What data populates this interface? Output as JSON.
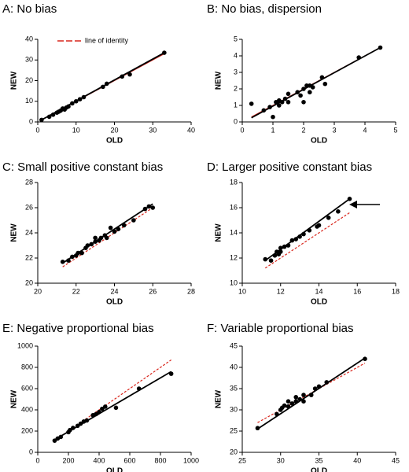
{
  "chart_data": [
    {
      "type": "scatter",
      "title": "A: No bias",
      "x_label": "OLD",
      "y_label": "NEW",
      "xlim": [
        0,
        40
      ],
      "ylim": [
        0,
        40
      ],
      "xticks": [
        0,
        10,
        20,
        30,
        40
      ],
      "yticks": [
        0,
        10,
        20,
        30,
        40
      ],
      "x": [
        1,
        3,
        4,
        5,
        5.5,
        6,
        6.5,
        7,
        7.5,
        8,
        9,
        10,
        11,
        12,
        17,
        18,
        22,
        24,
        33
      ],
      "values": [
        1,
        2.5,
        3.5,
        4.5,
        5,
        5.5,
        6.5,
        6,
        7,
        7.5,
        9,
        10,
        11,
        12,
        17,
        18.5,
        22,
        23,
        33.5
      ],
      "color": "#000000",
      "fit_line": {
        "x": [
          1,
          33
        ],
        "values": [
          1,
          33.5
        ],
        "color": "#000000"
      },
      "identity_line": {
        "name": "line of identity",
        "x": [
          1,
          33
        ],
        "values": [
          1,
          33
        ],
        "color": "#d9261c"
      }
    },
    {
      "type": "scatter",
      "title": "B: No bias, dispersion",
      "x_label": "OLD",
      "y_label": "NEW",
      "xlim": [
        0,
        5
      ],
      "ylim": [
        0,
        5
      ],
      "xticks": [
        0,
        1,
        2,
        3,
        4,
        5
      ],
      "yticks": [
        0,
        1,
        2,
        3,
        4,
        5
      ],
      "x": [
        0.3,
        0.7,
        0.9,
        1,
        1.1,
        1.2,
        1.2,
        1.3,
        1.4,
        1.5,
        1.5,
        1.8,
        1.9,
        2,
        2,
        2.1,
        2.2,
        2.2,
        2.3,
        2.6,
        2.7,
        3.8,
        4.5
      ],
      "values": [
        1.1,
        0.7,
        0.9,
        0.3,
        1.2,
        1,
        1.3,
        1.2,
        1.4,
        1.7,
        1.2,
        1.8,
        1.6,
        2,
        1.2,
        2.2,
        1.8,
        2.2,
        2.1,
        2.7,
        2.3,
        3.9,
        4.5
      ],
      "color": "#000000",
      "fit_line": {
        "x": [
          0.3,
          4.5
        ],
        "values": [
          0.25,
          4.5
        ],
        "color": "#000000"
      },
      "identity_line": {
        "x": [
          0.3,
          4.5
        ],
        "values": [
          0.3,
          4.5
        ],
        "color": "#d9261c"
      }
    },
    {
      "type": "scatter",
      "title": "C: Small positive constant bias",
      "x_label": "OLD",
      "y_label": "NEW",
      "xlim": [
        20,
        28
      ],
      "ylim": [
        20,
        28
      ],
      "xticks": [
        20,
        22,
        24,
        26,
        28
      ],
      "yticks": [
        20,
        22,
        24,
        26,
        28
      ],
      "x": [
        21.3,
        21.6,
        21.8,
        22,
        22.1,
        22.3,
        22.5,
        22.6,
        22.8,
        23,
        23,
        23.2,
        23.3,
        23.5,
        23.6,
        23.8,
        24,
        24.2,
        24.5,
        25,
        25.6,
        25.8,
        26
      ],
      "values": [
        21.7,
        21.8,
        22.1,
        22.2,
        22.4,
        22.4,
        22.8,
        23,
        23.1,
        23.3,
        23.6,
        23.4,
        23.6,
        23.8,
        23.6,
        24.4,
        24.1,
        24.3,
        24.6,
        25,
        25.9,
        26.1,
        26
      ],
      "color": "#000000",
      "fit_line": {
        "x": [
          21.3,
          26
        ],
        "values": [
          21.6,
          26.3
        ],
        "color": "#000000"
      },
      "identity_line": {
        "x": [
          21.3,
          26
        ],
        "values": [
          21.3,
          26
        ],
        "color": "#d9261c"
      }
    },
    {
      "type": "scatter",
      "title": "D: Larger positive constant bias",
      "x_label": "OLD",
      "y_label": "NEW",
      "xlim": [
        10,
        18
      ],
      "ylim": [
        10,
        18
      ],
      "xticks": [
        10,
        12,
        14,
        16,
        18
      ],
      "yticks": [
        10,
        12,
        14,
        16,
        18
      ],
      "x": [
        11.2,
        11.5,
        11.7,
        11.8,
        11.9,
        12,
        12,
        12.2,
        12.4,
        12.6,
        12.8,
        13,
        13.2,
        13.5,
        13.9,
        14,
        14.5,
        15,
        15.6
      ],
      "values": [
        11.9,
        11.8,
        12.2,
        12.5,
        12.3,
        12.8,
        12.5,
        12.9,
        13,
        13.4,
        13.5,
        13.7,
        13.9,
        14.2,
        14.5,
        14.6,
        15.2,
        15.7,
        16.7
      ],
      "color": "#000000",
      "fit_line": {
        "x": [
          11.2,
          15.6
        ],
        "values": [
          11.8,
          16.7
        ],
        "color": "#000000"
      },
      "identity_line": {
        "x": [
          11.2,
          15.6
        ],
        "values": [
          11.2,
          15.6
        ],
        "color": "#d9261c"
      }
    },
    {
      "type": "scatter",
      "title": "E: Negative proportional bias",
      "x_label": "OLD",
      "y_label": "NEW",
      "xlim": [
        0,
        1000
      ],
      "ylim": [
        0,
        1000
      ],
      "xticks": [
        0,
        200,
        400,
        600,
        800,
        1000
      ],
      "yticks": [
        0,
        200,
        400,
        600,
        800,
        1000
      ],
      "x": [
        110,
        130,
        150,
        200,
        210,
        230,
        260,
        280,
        300,
        320,
        360,
        380,
        400,
        420,
        440,
        510,
        660,
        870
      ],
      "values": [
        110,
        130,
        145,
        190,
        210,
        230,
        250,
        270,
        290,
        300,
        350,
        360,
        380,
        410,
        430,
        420,
        600,
        740
      ],
      "color": "#000000",
      "fit_line": {
        "x": [
          100,
          870
        ],
        "values": [
          110,
          760
        ],
        "color": "#000000"
      },
      "identity_line": {
        "x": [
          100,
          870
        ],
        "values": [
          100,
          870
        ],
        "color": "#d9261c"
      }
    },
    {
      "type": "scatter",
      "title": "F: Variable proportional bias",
      "x_label": "OLD",
      "y_label": "NEW",
      "xlim": [
        25,
        45
      ],
      "ylim": [
        20,
        45
      ],
      "xticks": [
        25,
        30,
        35,
        40,
        45
      ],
      "yticks": [
        20,
        25,
        30,
        35,
        40,
        45
      ],
      "x": [
        27,
        29.5,
        30,
        30.2,
        30.5,
        31,
        31,
        31.5,
        32,
        32,
        32.5,
        33,
        33,
        34,
        34.5,
        35,
        36,
        41
      ],
      "values": [
        25.7,
        29,
        30,
        30.5,
        31,
        32,
        30.8,
        31.5,
        32,
        33,
        32.5,
        33.5,
        32,
        33.5,
        35,
        35.5,
        36.5,
        42
      ],
      "color": "#000000",
      "fit_line": {
        "x": [
          27,
          41
        ],
        "values": [
          25.5,
          42.2
        ],
        "color": "#000000"
      },
      "identity_line": {
        "x": [
          27,
          41
        ],
        "values": [
          27,
          41
        ],
        "color": "#d9261c"
      }
    }
  ]
}
